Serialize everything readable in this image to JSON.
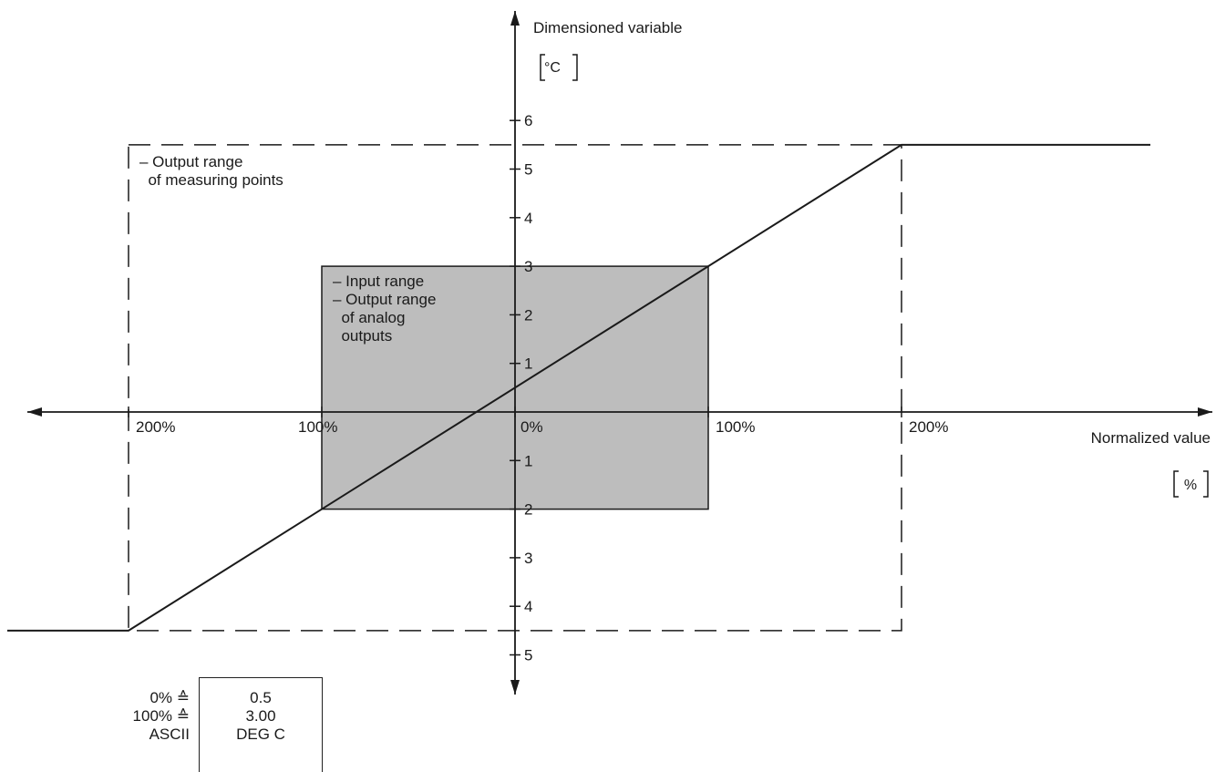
{
  "chart_data": {
    "type": "line",
    "y_axis_label": "Dimensioned variable",
    "y_unit": "°C",
    "x_axis_label": "Normalized value",
    "x_unit": "%",
    "x_tick_labels": [
      "200%",
      "100%",
      "0%",
      "100%",
      "200%"
    ],
    "x_ticks": [
      -200,
      -100,
      0,
      100,
      200
    ],
    "y_tick_labels_upper": [
      "6",
      "5",
      "4",
      "3",
      "2",
      "1"
    ],
    "y_ticks_upper": [
      6,
      5,
      4,
      3,
      2,
      1
    ],
    "y_tick_labels_lower": [
      "1",
      "2",
      "3",
      "4",
      "5"
    ],
    "y_ticks_lower": [
      -1,
      -2,
      -3,
      -4,
      -5
    ],
    "xlim": [
      -265,
      365
    ],
    "ylim": [
      -5.4,
      8.2
    ],
    "series": [
      {
        "x": [
          -265,
          -200,
          200,
          365
        ],
        "y": [
          -4.5,
          -4.5,
          5.5,
          5.5
        ]
      }
    ],
    "regions": [
      {
        "label_lines": [
          "– Input range",
          "– Output range",
          "  of analog",
          "  outputs"
        ],
        "x_range": [
          -100,
          100
        ],
        "y_range": [
          -2.0,
          3.0
        ],
        "fill": "#bdbdbd"
      },
      {
        "label_lines": [
          "– Output range",
          "  of measuring points"
        ],
        "x_range": [
          -200,
          200
        ],
        "y_range": [
          -4.5,
          5.5
        ],
        "style": "dashed"
      }
    ]
  },
  "table": {
    "rows": [
      {
        "label": "0% ≙",
        "value": "0.5"
      },
      {
        "label": "100% ≙",
        "value": "3.00"
      },
      {
        "label": "ASCII",
        "value": "DEG C"
      }
    ]
  },
  "colors": {
    "ink": "#1a1a1a",
    "shade": "#bdbdbd"
  }
}
